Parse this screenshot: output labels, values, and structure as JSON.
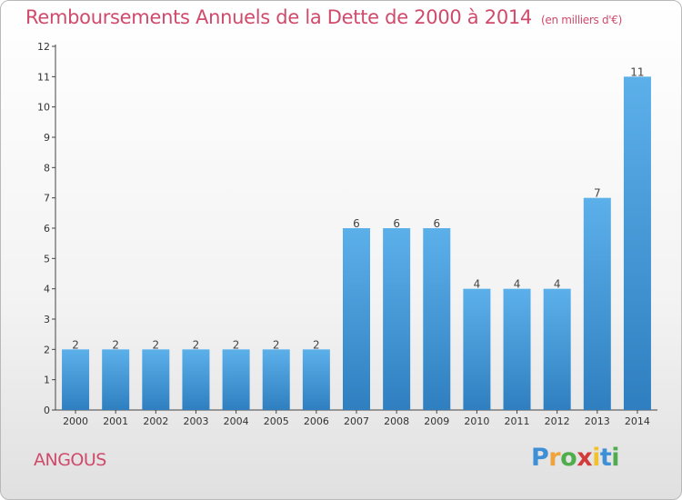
{
  "chart_data": {
    "type": "bar",
    "title": "Remboursements Annuels de la Dette de 2000 à 2014",
    "unit": "(en milliers d'€)",
    "categories": [
      "2000",
      "2001",
      "2002",
      "2003",
      "2004",
      "2005",
      "2006",
      "2007",
      "2008",
      "2009",
      "2010",
      "2011",
      "2012",
      "2013",
      "2014"
    ],
    "values": [
      2,
      2,
      2,
      2,
      2,
      2,
      2,
      6,
      6,
      6,
      4,
      4,
      4,
      7,
      11
    ],
    "data_labels": [
      "2",
      "2",
      "2",
      "2",
      "2",
      "2",
      "2",
      "6",
      "6",
      "6",
      "4",
      "4",
      "4",
      "7",
      "11"
    ],
    "ylim": [
      0,
      12
    ],
    "yticks": [
      "0",
      "1",
      "2",
      "3",
      "4",
      "5",
      "6",
      "7",
      "8",
      "9",
      "10",
      "11",
      "12"
    ],
    "grid": false,
    "bar_color": "#4aa3e0"
  },
  "commune": "ANGOUS",
  "logo": {
    "letters": [
      "P",
      "r",
      "o",
      "x",
      "i",
      "t",
      "i"
    ]
  }
}
